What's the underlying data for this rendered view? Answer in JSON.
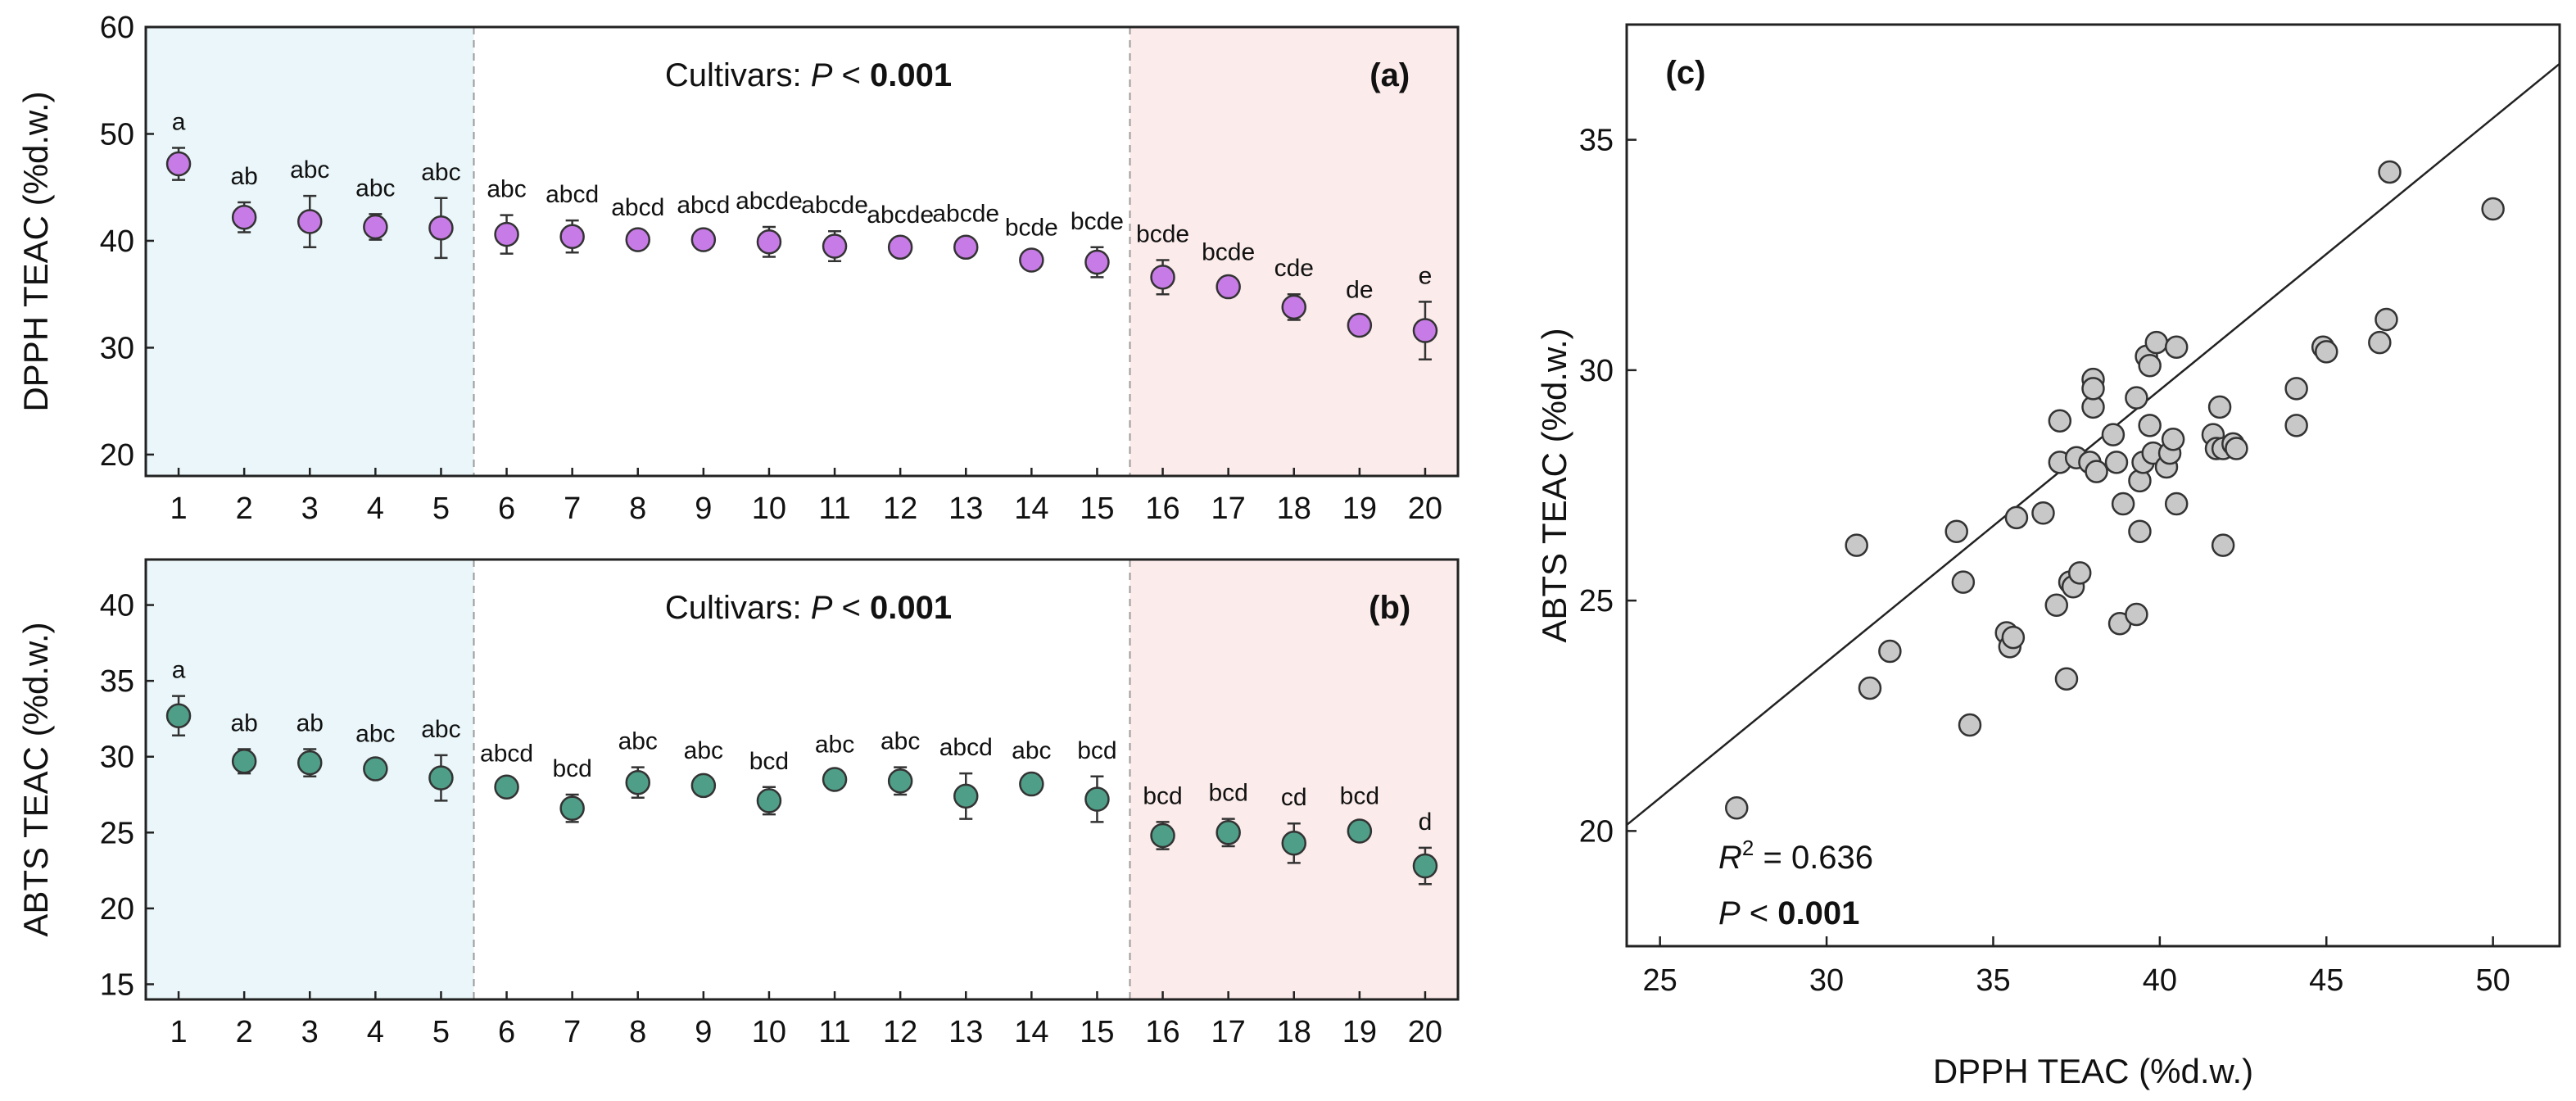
{
  "chart_data": [
    {
      "type": "scatter",
      "panel": "(a)",
      "title": "",
      "annotation": {
        "prefix": "Cultivars: ",
        "p_symbol": "P",
        "operator": " < ",
        "value": "0.001"
      },
      "xlabel": "",
      "ylabel": "DPPH TEAC (%d.w.)",
      "xlim": [
        0.5,
        20.5
      ],
      "ylim": [
        18,
        60
      ],
      "yticks": [
        20,
        30,
        40,
        50,
        60
      ],
      "categories": [
        "1",
        "2",
        "3",
        "4",
        "5",
        "6",
        "7",
        "8",
        "9",
        "10",
        "11",
        "12",
        "13",
        "14",
        "15",
        "16",
        "17",
        "18",
        "19",
        "20"
      ],
      "values": [
        47.2,
        42.2,
        41.8,
        41.3,
        41.2,
        40.6,
        40.4,
        40.1,
        40.1,
        39.9,
        39.5,
        39.4,
        39.4,
        38.2,
        38.0,
        36.6,
        35.7,
        33.8,
        32.1,
        31.6
      ],
      "errors": [
        1.5,
        1.4,
        2.4,
        1.2,
        2.8,
        1.8,
        1.5,
        0.6,
        0.8,
        1.4,
        1.4,
        0.6,
        0.7,
        0.6,
        1.4,
        1.6,
        0.8,
        1.2,
        0.9,
        2.7
      ],
      "letters": [
        "a",
        "ab",
        "abc",
        "abc",
        "abc",
        "abc",
        "abcd",
        "abcd",
        "abcd",
        "abcde",
        "abcde",
        "abcde",
        "abcde",
        "bcde",
        "bcde",
        "bcde",
        "bcde",
        "cde",
        "de",
        "e"
      ],
      "marker_color": "#c77be6",
      "regions": [
        {
          "from": 0.5,
          "to": 5.5,
          "color": "#eaf6f9"
        },
        {
          "from": 15.5,
          "to": 20.5,
          "color": "#fbebea"
        }
      ]
    },
    {
      "type": "scatter",
      "panel": "(b)",
      "title": "",
      "annotation": {
        "prefix": "Cultivars: ",
        "p_symbol": "P",
        "operator": " < ",
        "value": "0.001"
      },
      "xlabel": "",
      "ylabel": "ABTS TEAC (%d.w.)",
      "xlim": [
        0.5,
        20.5
      ],
      "ylim": [
        14,
        43
      ],
      "yticks": [
        15,
        20,
        25,
        30,
        35,
        40
      ],
      "categories": [
        "1",
        "2",
        "3",
        "4",
        "5",
        "6",
        "7",
        "8",
        "9",
        "10",
        "11",
        "12",
        "13",
        "14",
        "15",
        "16",
        "17",
        "18",
        "19",
        "20"
      ],
      "values": [
        32.7,
        29.7,
        29.6,
        29.2,
        28.6,
        28.0,
        26.6,
        28.3,
        28.1,
        27.1,
        28.5,
        28.4,
        27.4,
        28.2,
        27.2,
        24.8,
        25.0,
        24.3,
        25.1,
        22.8
      ],
      "errors": [
        1.3,
        0.8,
        0.9,
        0.6,
        1.5,
        0.5,
        0.9,
        1.0,
        0.6,
        0.9,
        0.6,
        0.9,
        1.5,
        0.5,
        1.5,
        0.9,
        0.9,
        1.3,
        0.6,
        1.2
      ],
      "letters": [
        "a",
        "ab",
        "ab",
        "abc",
        "abc",
        "abcd",
        "bcd",
        "abc",
        "abc",
        "bcd",
        "abc",
        "abc",
        "abcd",
        "abc",
        "bcd",
        "bcd",
        "bcd",
        "cd",
        "bcd",
        "d"
      ],
      "marker_color": "#4f9e88",
      "regions": [
        {
          "from": 0.5,
          "to": 5.5,
          "color": "#eaf6f9"
        },
        {
          "from": 15.5,
          "to": 20.5,
          "color": "#fbebea"
        }
      ]
    },
    {
      "type": "scatter",
      "panel": "(c)",
      "title": "",
      "xlabel": "DPPH TEAC (%d.w.)",
      "ylabel": "ABTS TEAC (%d.w.)",
      "xlim": [
        24,
        52
      ],
      "ylim": [
        17.5,
        37.5
      ],
      "xticks": [
        25,
        30,
        35,
        40,
        45,
        50
      ],
      "yticks": [
        20,
        25,
        30,
        35
      ],
      "r2_label": "R",
      "r2_sup": "2",
      "r2_value": " = 0.636",
      "p_symbol": "P",
      "p_operator": " < ",
      "p_value": "0.001",
      "fit_line": {
        "slope": 0.59,
        "intercept": 5.97
      },
      "marker_color": "#c8c8c8",
      "x": [
        27.3,
        30.9,
        31.3,
        31.9,
        33.9,
        34.1,
        34.3,
        35.4,
        35.5,
        35.6,
        35.7,
        36.5,
        36.9,
        37.0,
        37.0,
        37.2,
        37.3,
        37.4,
        37.5,
        37.6,
        37.9,
        38.0,
        38.0,
        38.0,
        38.1,
        38.6,
        38.7,
        38.8,
        38.9,
        39.3,
        39.3,
        39.4,
        39.4,
        39.5,
        39.6,
        39.7,
        39.7,
        39.8,
        39.9,
        40.2,
        40.3,
        40.4,
        40.5,
        40.5,
        41.6,
        41.7,
        41.8,
        41.9,
        41.9,
        42.2,
        42.3,
        44.1,
        44.1,
        44.9,
        45.0,
        46.6,
        46.8,
        46.9,
        50.0
      ],
      "y": [
        20.5,
        26.2,
        23.1,
        23.9,
        26.5,
        25.4,
        22.3,
        24.3,
        24.0,
        24.2,
        26.8,
        26.9,
        24.9,
        28.9,
        28.0,
        23.3,
        25.4,
        25.3,
        28.1,
        25.6,
        28.0,
        29.8,
        29.2,
        29.6,
        27.8,
        28.6,
        28.0,
        24.5,
        27.1,
        29.4,
        24.7,
        26.5,
        27.6,
        28.0,
        30.3,
        28.8,
        30.1,
        28.2,
        30.6,
        27.9,
        28.2,
        28.5,
        30.5,
        27.1,
        28.6,
        28.3,
        29.2,
        28.3,
        26.2,
        28.4,
        28.3,
        28.8,
        29.6,
        30.5,
        30.4,
        30.6,
        31.1,
        34.3,
        33.5
      ]
    }
  ]
}
